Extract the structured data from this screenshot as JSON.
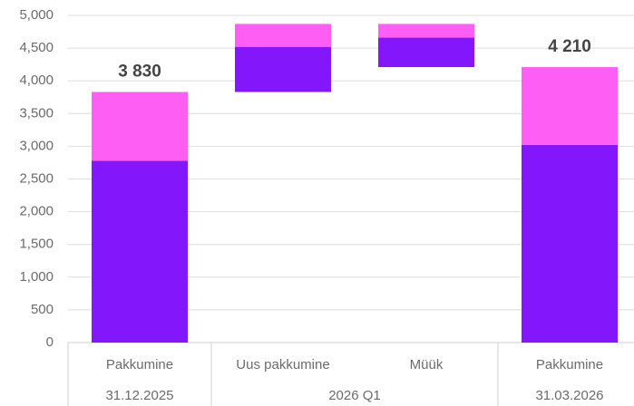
{
  "chart_data": {
    "type": "waterfall",
    "categories": [
      "Pakkumine",
      "Uus pakkumine",
      "Müük",
      "Pakkumine"
    ],
    "groups": [
      {
        "label": "31.12.2025",
        "size": 1
      },
      {
        "label": "2026 Q1",
        "size": 2
      },
      {
        "label": "31.03.2026",
        "size": 1
      }
    ],
    "series": [
      {
        "color": "#8316fb",
        "values": [
          2780,
          690,
          -450,
          3020
        ]
      },
      {
        "color": "#ff5ef5",
        "values": [
          1050,
          350,
          -210,
          1190
        ]
      }
    ],
    "totals": [
      3830,
      null,
      null,
      4210
    ],
    "total_labels": [
      "3 830",
      null,
      null,
      "4 210"
    ],
    "ylim": [
      0,
      5000
    ],
    "yticks": [
      0,
      500,
      {
        "value": 1000,
        "label": "1,000"
      },
      {
        "value": 1500,
        "label": "1,500"
      },
      {
        "value": 2000,
        "label": "2,000"
      },
      {
        "value": 2500,
        "label": "2,500"
      },
      {
        "value": 3000,
        "label": "3,000"
      },
      {
        "value": 3500,
        "label": "3,500"
      },
      {
        "value": 4000,
        "label": "4,000"
      },
      {
        "value": 4500,
        "label": "4,500"
      },
      {
        "value": 5000,
        "label": "5,000"
      }
    ],
    "grid": true
  }
}
